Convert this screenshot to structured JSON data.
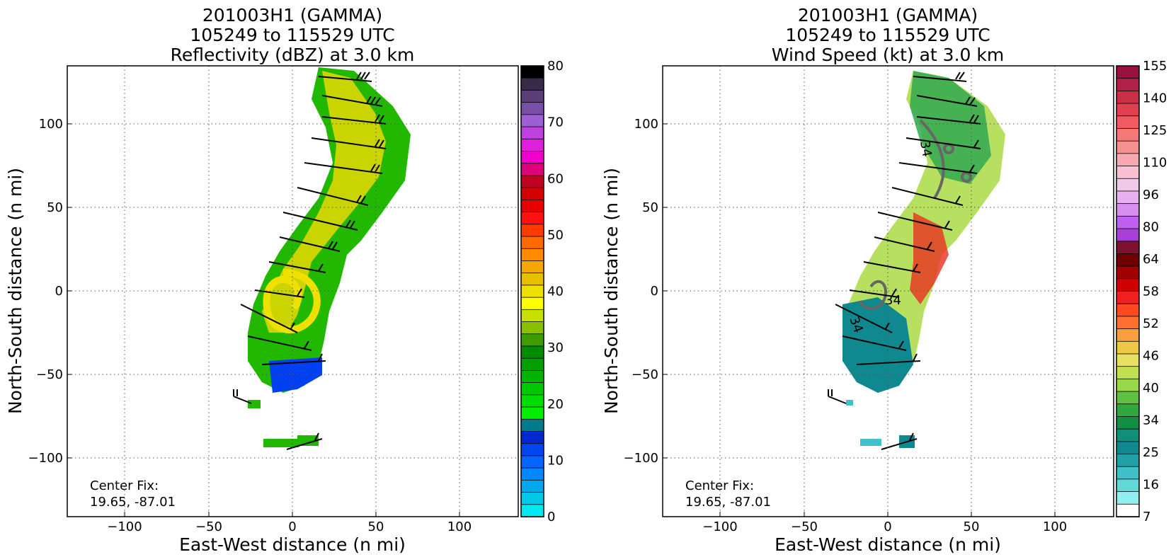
{
  "panels": [
    {
      "title_line1": "201003H1 (GAMMA)",
      "title_line2": "105249 to 115529 UTC",
      "title_line3": "Reflectivity (dBZ) at 3.0 km",
      "xlabel": "East-West distance (n mi)",
      "ylabel": "North-South distance (n mi)",
      "center_fix_label": "Center Fix:",
      "center_fix_value": "19.65, -87.01",
      "x_ticks": [
        "−100",
        "−50",
        "0",
        "50",
        "100"
      ],
      "y_ticks": [
        "100",
        "50",
        "0",
        "−50",
        "−100"
      ],
      "colorbar_ticks": [
        "80",
        "70",
        "60",
        "50",
        "40",
        "30",
        "20",
        "10",
        "0"
      ],
      "colorbar_colors": [
        "#000000",
        "#3a2a4a",
        "#5c3f7a",
        "#7a4fa8",
        "#9e5fd6",
        "#c040e0",
        "#e020e0",
        "#f000c8",
        "#e0007a",
        "#c00020",
        "#d40000",
        "#e80000",
        "#ff1010",
        "#ff3a00",
        "#ff6a00",
        "#ff8a00",
        "#f2a800",
        "#e8c000",
        "#f0e000",
        "#ffff00",
        "#c8e000",
        "#88c000",
        "#3c9c00",
        "#008c00",
        "#00a000",
        "#00b400",
        "#00c800",
        "#00dc00",
        "#00f000",
        "#007a8c",
        "#0028d0",
        "#0046f0",
        "#0066ff",
        "#0088ff",
        "#00a8f0",
        "#00c8e8",
        "#00e8f0"
      ]
    },
    {
      "title_line1": "201003H1 (GAMMA)",
      "title_line2": "105249 to 115529 UTC",
      "title_line3": "Wind Speed (kt) at 3.0 km",
      "xlabel": "East-West distance (n mi)",
      "ylabel": "North-South distance (n mi)",
      "center_fix_label": "Center Fix:",
      "center_fix_value": "19.65, -87.01",
      "x_ticks": [
        "−100",
        "−50",
        "0",
        "50",
        "100"
      ],
      "y_ticks": [
        "100",
        "50",
        "0",
        "−50",
        "−100"
      ],
      "colorbar_ticks": [
        "155",
        "140",
        "125",
        "110",
        "96",
        "80",
        "64",
        "58",
        "52",
        "46",
        "40",
        "34",
        "25",
        "16",
        "7"
      ],
      "colorbar_colors": [
        "#9a1040",
        "#b02048",
        "#c83048",
        "#e04050",
        "#f05a60",
        "#f47878",
        "#f89090",
        "#f8a8b0",
        "#f8c0d0",
        "#f0c8e8",
        "#e8b0f0",
        "#d890f0",
        "#c060f0",
        "#a840d8",
        "#801030",
        "#700000",
        "#a00000",
        "#d00000",
        "#f02020",
        "#ff4a20",
        "#ff7030",
        "#f8a040",
        "#f0c848",
        "#e8e060",
        "#c0e050",
        "#98d848",
        "#60c040",
        "#30a840",
        "#109040",
        "#10907a",
        "#108890",
        "#20a0a8",
        "#40c0c8",
        "#60d8d8",
        "#90f0f0",
        "#ffffff"
      ],
      "contour_labels": [
        "34",
        "34",
        "34"
      ]
    }
  ],
  "chart_data": [
    {
      "type": "heatmap",
      "title": "201003H1 (GAMMA) 105249 to 115529 UTC Reflectivity (dBZ) at 3.0 km",
      "xlabel": "East-West distance (n mi)",
      "ylabel": "North-South distance (n mi)",
      "xlim": [
        -135,
        135
      ],
      "ylim": [
        -135,
        135
      ],
      "grid": true,
      "colorbar_range": [
        0,
        80
      ],
      "colorbar_units": "dBZ"
    },
    {
      "type": "heatmap",
      "title": "201003H1 (GAMMA) 105249 to 115529 UTC Wind Speed (kt) at 3.0 km",
      "xlabel": "East-West distance (n mi)",
      "ylabel": "North-South distance (n mi)",
      "xlim": [
        -135,
        135
      ],
      "ylim": [
        -135,
        135
      ],
      "grid": true,
      "colorbar_range": [
        7,
        160
      ],
      "colorbar_units": "kt"
    }
  ]
}
